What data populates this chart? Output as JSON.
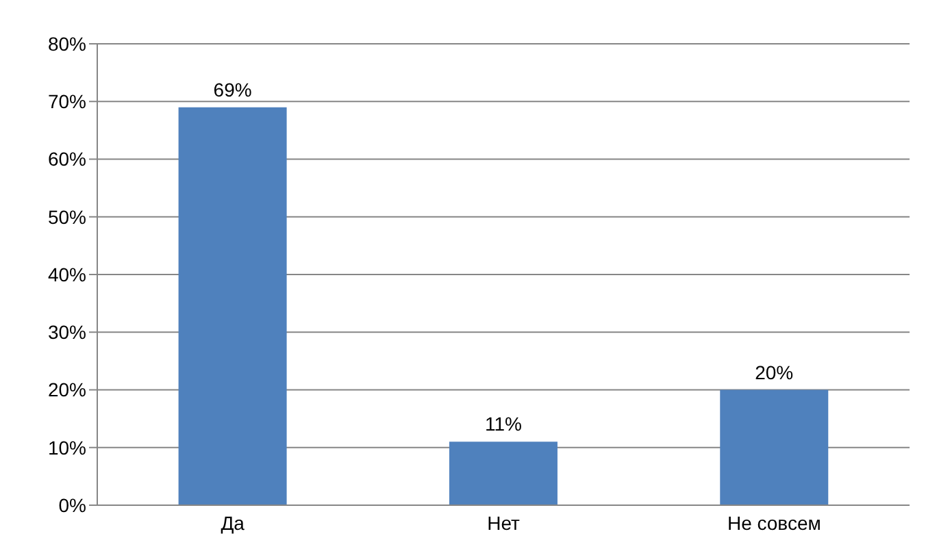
{
  "chart_data": {
    "type": "bar",
    "categories": [
      "Да",
      "Нет",
      "Не совсем"
    ],
    "values": [
      69,
      11,
      20
    ],
    "value_labels": [
      "69%",
      "11%",
      "20%"
    ],
    "color": "#4f81bd",
    "ylim": [
      0,
      80
    ],
    "yticks": [
      {
        "value": 0,
        "label": "0%"
      },
      {
        "value": 10,
        "label": "10%"
      },
      {
        "value": 20,
        "label": "20%"
      },
      {
        "value": 30,
        "label": "30%"
      },
      {
        "value": 40,
        "label": "40%"
      },
      {
        "value": 50,
        "label": "50%"
      },
      {
        "value": 60,
        "label": "60%"
      },
      {
        "value": 70,
        "label": "70%"
      },
      {
        "value": 80,
        "label": "80%"
      }
    ],
    "grid": "y"
  }
}
